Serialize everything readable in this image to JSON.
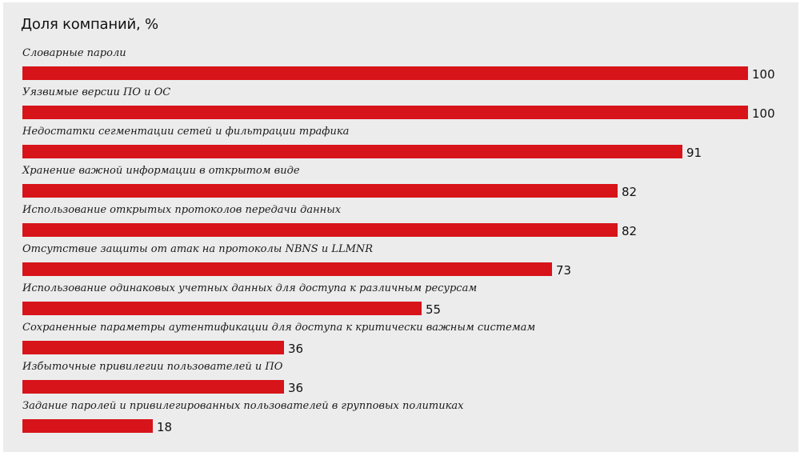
{
  "chart_data": {
    "type": "bar",
    "orientation": "horizontal",
    "title": "Доля компаний, %",
    "xlim": [
      0,
      100
    ],
    "grid": false,
    "bar_color": "#d7141a",
    "categories": [
      "Словарные пароли",
      "Уязвимые версии ПО и ОС",
      "Недостатки сегментации сетей и фильтрации трафика",
      "Хранение важной информации в открытом виде",
      "Использование открытых протоколов передачи данных",
      "Отсутствие защиты от атак на протоколы NBNS и LLMNR",
      "Использование одинаковых учетных данных для доступа к различным ресурсам",
      "Сохраненные параметры аутентификации для доступа к критически важным системам",
      "Избыточные привилегии пользователей и ПО",
      "Задание паролей и привилегированных пользователей в групповых политиках"
    ],
    "values": [
      100,
      100,
      91,
      82,
      82,
      73,
      55,
      36,
      36,
      18
    ]
  }
}
